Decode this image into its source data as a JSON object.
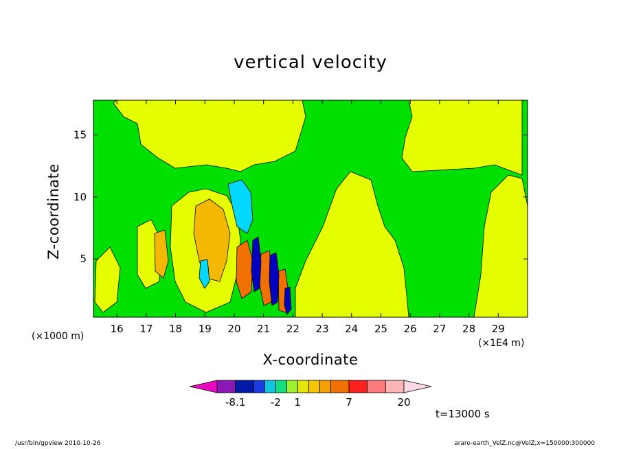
{
  "chart_data": {
    "type": "heatmap",
    "title": "vertical velocity",
    "xlabel": "X-coordinate",
    "ylabel": "Z-coordinate",
    "x_unit_left": "(×1000 m)",
    "x_unit_right": "(×1E4 m)",
    "xlim": [
      15.2,
      30.0
    ],
    "ylim": [
      0.3,
      17.8
    ],
    "x_ticks": [
      "16",
      "17",
      "18",
      "19",
      "20",
      "21",
      "22",
      "23",
      "24",
      "25",
      "26",
      "27",
      "28",
      "29"
    ],
    "y_ticks": [
      "5",
      "10",
      "15"
    ],
    "colorbar": {
      "colors": [
        "#e60cbd",
        "#8c17b5",
        "#0019a6",
        "#1a3ddf",
        "#12c5e0",
        "#12e07f",
        "#9ff02e",
        "#e6e600",
        "#f5c400",
        "#f5a000",
        "#f07000",
        "#ff2020",
        "#ff7a7a",
        "#ffb5b5",
        "#ffd8e8"
      ],
      "labels": [
        "-8.1",
        "-2",
        "1",
        "7",
        "20"
      ]
    }
  },
  "annotations": {
    "time": "t=13000 s",
    "footer_left": "/usr/bin/gpview   2010-10-26",
    "footer_right": "arare-earth_VelZ.nc@VelZ,x=150000:300000"
  },
  "colors": {
    "background_field": "#00e000",
    "positive_weak": "#e6ff00",
    "positive_mid": "#f5b800",
    "positive_strong": "#f07000",
    "negative_weak": "#00d8ff",
    "negative_strong": "#0000c0"
  }
}
